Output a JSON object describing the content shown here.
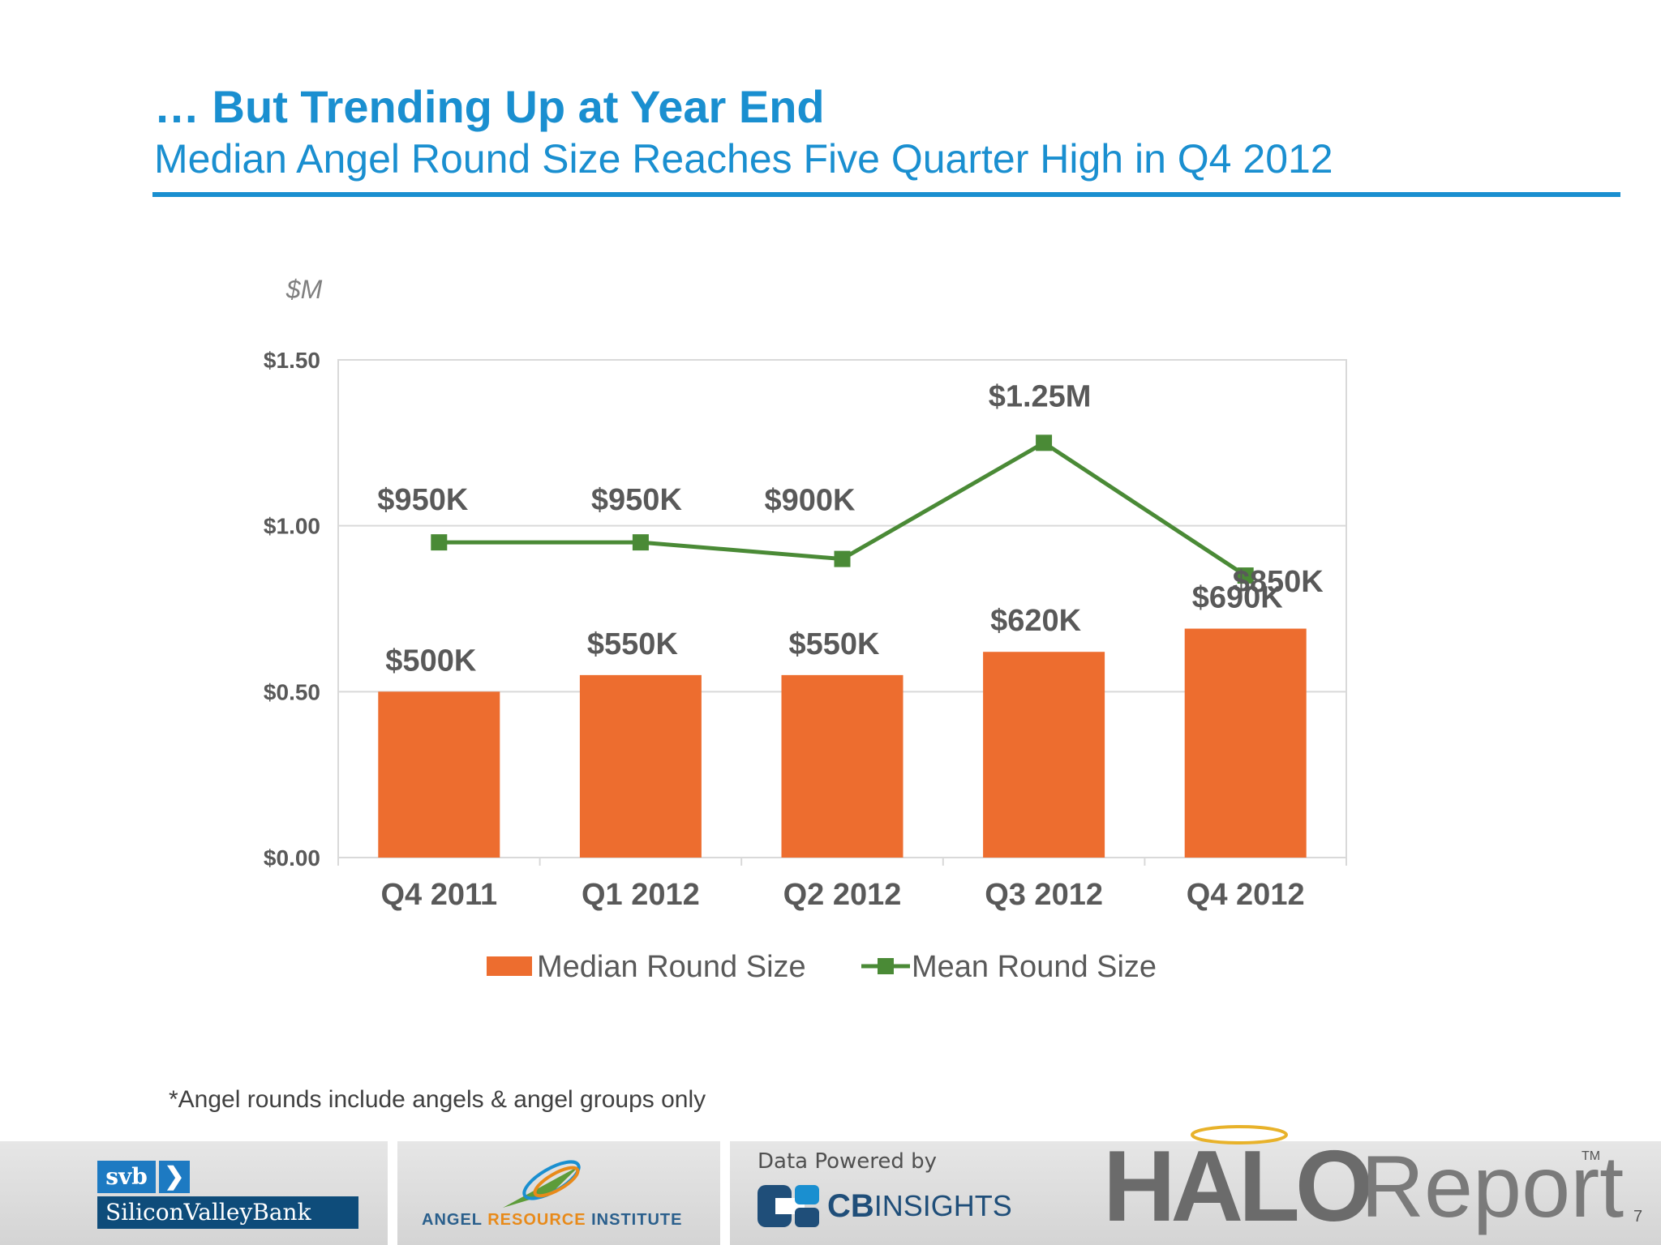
{
  "header": {
    "title": "… But Trending Up at Year End",
    "subtitle": "Median Angel Round Size Reaches Five Quarter High in Q4 2012"
  },
  "chart_data": {
    "type": "bar",
    "unit_label": "$M",
    "categories": [
      "Q4 2011",
      "Q1 2012",
      "Q2 2012",
      "Q3 2012",
      "Q4 2012"
    ],
    "ylim": [
      0,
      1.5
    ],
    "yticks": [
      0,
      0.5,
      1.0,
      1.5
    ],
    "ytick_labels": [
      "$0.00",
      "$0.50",
      "$1.00",
      "$1.50"
    ],
    "grid": true,
    "legend_position": "bottom",
    "series": [
      {
        "name": "Median Round Size",
        "type": "bar",
        "color": "#ed6d2f",
        "values": [
          0.5,
          0.55,
          0.55,
          0.62,
          0.69
        ],
        "labels": [
          "$500K",
          "$550K",
          "$550K",
          "$620K",
          "$690K"
        ]
      },
      {
        "name": "Mean Round Size",
        "type": "line",
        "color": "#4a8a36",
        "values": [
          0.95,
          0.95,
          0.9,
          1.25,
          0.85
        ],
        "labels": [
          "$950K",
          "$950K",
          "$900K",
          "$1.25M",
          "$850K"
        ]
      }
    ]
  },
  "footnote": "*Angel rounds include angels & angel groups only",
  "footer": {
    "svb_abbrev": "svb",
    "svb_name": "SiliconValleyBank",
    "ari_part1": "ANGEL ",
    "ari_part2": "RESOURCE",
    "ari_part3": " INSTITUTE",
    "cb_label": "Data Powered by",
    "cb_name": "CB",
    "cb_insights": "INSIGHTS",
    "halo_word": "HALO",
    "report_word": "Report",
    "tm": "TM"
  },
  "page_number": "7"
}
